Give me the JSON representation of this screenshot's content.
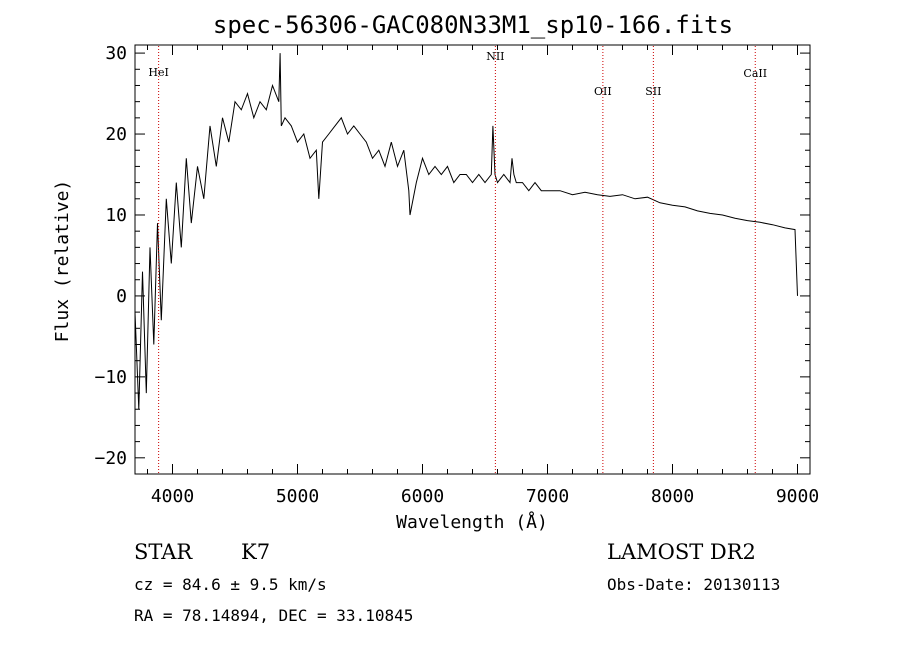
{
  "chart_data": {
    "type": "line",
    "title": "spec-56306-GAC080N33M1_sp10-166.fits",
    "xlabel": "Wavelength (Å)",
    "ylabel": "Flux (relative)",
    "xlim": [
      3700,
      9100
    ],
    "ylim": [
      -22,
      31
    ],
    "xticks": [
      4000,
      5000,
      6000,
      7000,
      8000,
      9000
    ],
    "yticks": [
      -20,
      -10,
      0,
      10,
      20,
      30
    ],
    "grid": false,
    "series": [
      {
        "x": [
          3700,
          3730,
          3760,
          3790,
          3820,
          3850,
          3880,
          3910,
          3950,
          3990,
          4030,
          4070,
          4110,
          4150,
          4200,
          4250,
          4300,
          4350,
          4400,
          4450,
          4500,
          4550,
          4600,
          4650,
          4700,
          4750,
          4800,
          4850,
          4861,
          4870,
          4900,
          4950,
          5000,
          5050,
          5100,
          5150,
          5170,
          5200,
          5250,
          5300,
          5350,
          5400,
          5450,
          5500,
          5550,
          5600,
          5650,
          5700,
          5750,
          5800,
          5850,
          5890,
          5900,
          5950,
          6000,
          6050,
          6100,
          6150,
          6200,
          6250,
          6300,
          6350,
          6400,
          6450,
          6500,
          6550,
          6563,
          6580,
          6600,
          6650,
          6700,
          6716,
          6731,
          6750,
          6800,
          6850,
          6900,
          6950,
          7000,
          7100,
          7200,
          7300,
          7400,
          7500,
          7600,
          7700,
          7800,
          7900,
          8000,
          8100,
          8200,
          8300,
          8400,
          8500,
          8600,
          8700,
          8800,
          8900,
          8980,
          9000
        ],
        "y": [
          -2,
          -14,
          3,
          -12,
          6,
          -6,
          9,
          -3,
          12,
          4,
          14,
          6,
          17,
          9,
          16,
          12,
          21,
          16,
          22,
          19,
          24,
          23,
          25,
          22,
          24,
          23,
          26,
          24,
          30,
          21,
          22,
          21,
          19,
          20,
          17,
          18,
          12,
          19,
          20,
          21,
          22,
          20,
          21,
          20,
          19,
          17,
          18,
          16,
          19,
          16,
          18,
          13,
          10,
          14,
          17,
          15,
          16,
          15,
          16,
          14,
          15,
          15,
          14,
          15,
          14,
          15,
          21,
          15,
          14,
          15,
          14,
          17,
          15,
          14,
          14,
          13,
          14,
          13,
          13,
          13,
          12.5,
          12.8,
          12.5,
          12.3,
          12.5,
          12,
          12.2,
          11.5,
          11.2,
          11,
          10.5,
          10.2,
          10,
          9.6,
          9.3,
          9.1,
          8.8,
          8.4,
          8.2,
          0
        ]
      }
    ],
    "annotations": [
      {
        "label": "HeI",
        "x": 3889
      },
      {
        "label": "NII",
        "x": 6583
      },
      {
        "label": "OII",
        "x": 7443
      },
      {
        "label": "SII",
        "x": 7847
      },
      {
        "label": "CaII",
        "x": 8662
      }
    ],
    "line_marker_color": "#cc0000",
    "axis_color": "#000000"
  },
  "footer": {
    "object_class": "STAR",
    "subclass": "K7",
    "survey": "LAMOST DR2",
    "cz": "cz = 84.6 ± 9.5 km/s",
    "obs_date": "Obs-Date: 20130113",
    "coords": "RA =  78.14894, DEC =  33.10845"
  }
}
